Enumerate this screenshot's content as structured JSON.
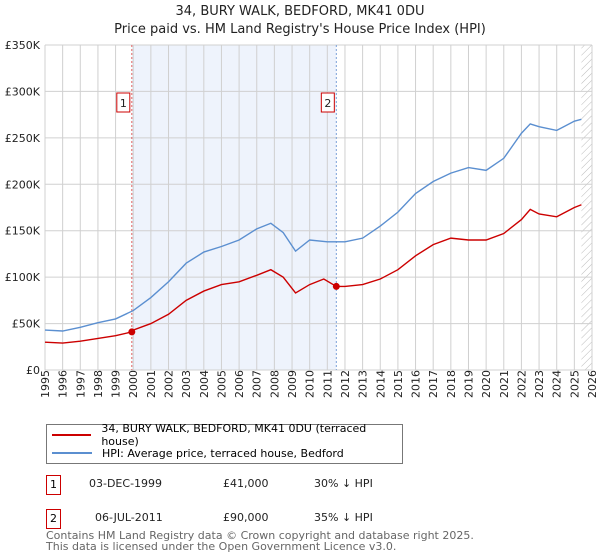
{
  "chart_data": {
    "type": "line",
    "title": "34, BURY WALK, BEDFORD, MK41 0DU",
    "subtitle": "Price paid vs. HM Land Registry's House Price Index (HPI)",
    "xlim": [
      1995,
      2026
    ],
    "ylim": [
      0,
      350000
    ],
    "yticks": [
      0,
      50000,
      100000,
      150000,
      200000,
      250000,
      300000,
      350000
    ],
    "ytick_labels": [
      "£0",
      "£50K",
      "£100K",
      "£150K",
      "£200K",
      "£250K",
      "£300K",
      "£350K"
    ],
    "xticks": [
      "1995",
      "1996",
      "1997",
      "1998",
      "1999",
      "2000",
      "2001",
      "2002",
      "2003",
      "2004",
      "2005",
      "2006",
      "2007",
      "2008",
      "2009",
      "2010",
      "2011",
      "2012",
      "2013",
      "2014",
      "2015",
      "2016",
      "2017",
      "2018",
      "2019",
      "2020",
      "2021",
      "2022",
      "2023",
      "2024",
      "2025",
      "2026"
    ],
    "grid": true,
    "series": [
      {
        "name": "34, BURY WALK, BEDFORD, MK41 0DU (terraced house)",
        "color": "#cc0000",
        "x": [
          1995,
          1996,
          1997,
          1998,
          1999,
          1999.92,
          2000,
          2001,
          2002,
          2003,
          2004,
          2005,
          2006,
          2007,
          2007.8,
          2008.5,
          2009.2,
          2010,
          2010.8,
          2011.51,
          2012,
          2013,
          2014,
          2015,
          2016,
          2017,
          2018,
          2019,
          2020,
          2021,
          2022,
          2022.5,
          2023,
          2024,
          2025,
          2025.4
        ],
        "y": [
          30000,
          29000,
          31000,
          34000,
          37000,
          41000,
          43000,
          50000,
          60000,
          75000,
          85000,
          92000,
          95000,
          102000,
          108000,
          100000,
          83000,
          92000,
          98000,
          90000,
          90000,
          92000,
          98000,
          108000,
          123000,
          135000,
          142000,
          140000,
          140000,
          147000,
          162000,
          173000,
          168000,
          165000,
          175000,
          178000
        ]
      },
      {
        "name": "HPI: Average price, terraced house, Bedford",
        "color": "#5b8fd0",
        "x": [
          1995,
          1996,
          1997,
          1998,
          1999,
          2000,
          2001,
          2002,
          2003,
          2004,
          2005,
          2006,
          2007,
          2007.8,
          2008.5,
          2009.2,
          2010,
          2011,
          2012,
          2013,
          2014,
          2015,
          2016,
          2017,
          2018,
          2019,
          2020,
          2021,
          2022,
          2022.5,
          2023,
          2024,
          2025,
          2025.4
        ],
        "y": [
          43000,
          42000,
          46000,
          51000,
          55000,
          64000,
          78000,
          95000,
          115000,
          127000,
          133000,
          140000,
          152000,
          158000,
          148000,
          128000,
          140000,
          138000,
          138000,
          142000,
          155000,
          170000,
          190000,
          203000,
          212000,
          218000,
          215000,
          228000,
          255000,
          265000,
          262000,
          258000,
          268000,
          270000
        ]
      }
    ],
    "annotations": [
      {
        "label": "1",
        "x": 1999.92,
        "y": 41000
      },
      {
        "label": "2",
        "x": 2011.51,
        "y": 90000
      }
    ],
    "shaded_range": [
      1999.92,
      2011.51
    ],
    "forecast_hatch_from": 2025.4,
    "legend_placement": "bottom"
  },
  "transactions": [
    {
      "num": "1",
      "date": "03-DEC-1999",
      "price": "£41,000",
      "hpi": "30% ↓ HPI"
    },
    {
      "num": "2",
      "date": "06-JUL-2011",
      "price": "£90,000",
      "hpi": "35% ↓ HPI"
    }
  ],
  "footer": [
    "Contains HM Land Registry data © Crown copyright and database right 2025.",
    "This data is licensed under the Open Government Licence v3.0."
  ]
}
